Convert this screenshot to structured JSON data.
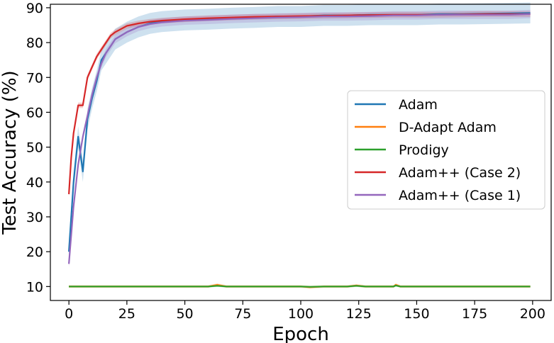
{
  "chart_data": {
    "type": "line",
    "title": "",
    "xlabel": "Epoch",
    "ylabel": "Test Accuracy (%)",
    "xlim": [
      -8,
      208
    ],
    "ylim": [
      6,
      91
    ],
    "xticks": [
      0,
      25,
      50,
      75,
      100,
      125,
      150,
      175,
      200
    ],
    "yticks": [
      10,
      20,
      30,
      40,
      50,
      60,
      70,
      80,
      90
    ],
    "grid": false,
    "legend_position": "center-right",
    "series": [
      {
        "name": "Adam",
        "color": "#1f77b4",
        "x": [
          0,
          2,
          4,
          6,
          8,
          10,
          12,
          14,
          16,
          18,
          20,
          25,
          30,
          35,
          40,
          50,
          60,
          70,
          80,
          90,
          100,
          110,
          120,
          130,
          140,
          150,
          160,
          170,
          180,
          190,
          199
        ],
        "y": [
          20,
          40,
          53,
          43,
          58,
          64,
          69,
          75,
          77,
          79,
          81,
          83,
          84.5,
          85.5,
          86,
          86.5,
          86.7,
          87,
          87.2,
          87.5,
          87.5,
          87.8,
          87.8,
          88,
          88,
          88,
          88.2,
          88.2,
          88.3,
          88.4,
          88.5
        ],
        "band": 3
      },
      {
        "name": "D-Adapt Adam",
        "color": "#ff7f0e",
        "x": [
          0,
          50,
          60,
          64,
          68,
          80,
          100,
          104,
          110,
          120,
          124,
          128,
          140,
          141,
          143,
          160,
          180,
          199
        ],
        "y": [
          10,
          10,
          10,
          10.5,
          10,
          10,
          10,
          9.8,
          10,
          10,
          10.3,
          10,
          10,
          10.5,
          10,
          10,
          10,
          10
        ],
        "band": 0.4
      },
      {
        "name": "Prodigy",
        "color": "#2ca02c",
        "x": [
          0,
          50,
          60,
          64,
          68,
          80,
          100,
          104,
          110,
          120,
          124,
          128,
          140,
          141,
          143,
          160,
          180,
          199
        ],
        "y": [
          10,
          10,
          10,
          10.2,
          10,
          10,
          10,
          9.9,
          10,
          10,
          10.2,
          10,
          10,
          10.3,
          10,
          10,
          10,
          10
        ],
        "band": 0.3
      },
      {
        "name": "Adam++ (Case 2)",
        "color": "#d62728",
        "x": [
          0,
          1,
          2,
          4,
          6,
          8,
          10,
          12,
          14,
          16,
          18,
          20,
          25,
          30,
          35,
          40,
          50,
          60,
          70,
          80,
          90,
          100,
          110,
          120,
          130,
          140,
          150,
          160,
          170,
          180,
          190,
          199
        ],
        "y": [
          36.5,
          47,
          54,
          62,
          62,
          70,
          73,
          76,
          78,
          80,
          82,
          83,
          84.8,
          85.5,
          86,
          86.3,
          86.7,
          87,
          87.2,
          87.4,
          87.5,
          87.6,
          87.7,
          87.8,
          87.9,
          88,
          88,
          88,
          88.1,
          88.2,
          88.2,
          88.2
        ],
        "band": 0.8
      },
      {
        "name": "Adam++ (Case 1)",
        "color": "#9467bd",
        "x": [
          0,
          2,
          4,
          6,
          8,
          10,
          12,
          14,
          16,
          18,
          20,
          25,
          30,
          35,
          40,
          50,
          60,
          70,
          80,
          90,
          100,
          110,
          120,
          130,
          140,
          150,
          160,
          170,
          180,
          190,
          199
        ],
        "y": [
          16.5,
          33,
          45,
          53,
          59,
          65,
          70,
          74,
          77,
          79,
          81,
          83,
          84.5,
          85.3,
          85.8,
          86.3,
          86.5,
          86.8,
          87,
          87.2,
          87.3,
          87.5,
          87.5,
          87.6,
          87.8,
          87.8,
          88,
          88,
          88,
          88,
          88.2
        ],
        "band": 1.2
      }
    ]
  }
}
